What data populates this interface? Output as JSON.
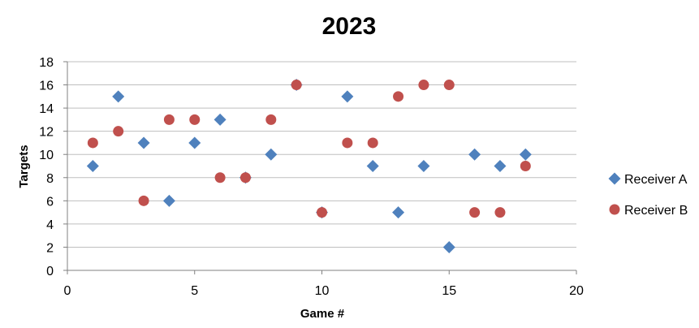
{
  "chart_data": {
    "type": "scatter",
    "title": "2023",
    "xlabel": "Game #",
    "ylabel": "Targets",
    "xlim": [
      0,
      20
    ],
    "ylim": [
      0,
      18
    ],
    "xticks": [
      0,
      5,
      10,
      15,
      20
    ],
    "yticks": [
      0,
      2,
      4,
      6,
      8,
      10,
      12,
      14,
      16,
      18
    ],
    "grid": "horizontal",
    "legend": "right",
    "series": [
      {
        "name": "Receiver A",
        "marker": "diamond",
        "color": "#4F81BD",
        "points": [
          {
            "x": 1,
            "y": 9
          },
          {
            "x": 2,
            "y": 15
          },
          {
            "x": 3,
            "y": 11
          },
          {
            "x": 4,
            "y": 6
          },
          {
            "x": 5,
            "y": 11
          },
          {
            "x": 6,
            "y": 13
          },
          {
            "x": 7,
            "y": 8
          },
          {
            "x": 8,
            "y": 10
          },
          {
            "x": 9,
            "y": 16
          },
          {
            "x": 10,
            "y": 5
          },
          {
            "x": 11,
            "y": 15
          },
          {
            "x": 12,
            "y": 9
          },
          {
            "x": 13,
            "y": 5
          },
          {
            "x": 14,
            "y": 9
          },
          {
            "x": 15,
            "y": 2
          },
          {
            "x": 16,
            "y": 10
          },
          {
            "x": 17,
            "y": 9
          },
          {
            "x": 18,
            "y": 10
          }
        ]
      },
      {
        "name": "Receiver B",
        "marker": "circle",
        "color": "#C0504D",
        "points": [
          {
            "x": 1,
            "y": 11
          },
          {
            "x": 2,
            "y": 12
          },
          {
            "x": 3,
            "y": 6
          },
          {
            "x": 4,
            "y": 13
          },
          {
            "x": 5,
            "y": 13
          },
          {
            "x": 6,
            "y": 8
          },
          {
            "x": 7,
            "y": 8
          },
          {
            "x": 8,
            "y": 13
          },
          {
            "x": 9,
            "y": 16
          },
          {
            "x": 10,
            "y": 5
          },
          {
            "x": 11,
            "y": 11
          },
          {
            "x": 12,
            "y": 11
          },
          {
            "x": 13,
            "y": 15
          },
          {
            "x": 14,
            "y": 16
          },
          {
            "x": 15,
            "y": 16
          },
          {
            "x": 16,
            "y": 5
          },
          {
            "x": 17,
            "y": 5
          },
          {
            "x": 18,
            "y": 9
          }
        ]
      }
    ]
  }
}
